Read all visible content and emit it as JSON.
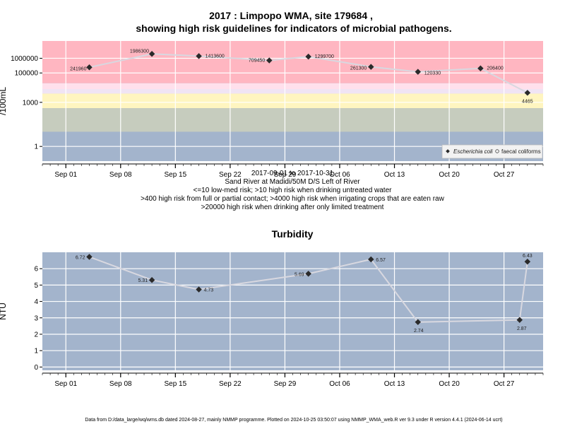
{
  "top_title": [
    "2017 : Limpopo WMA, site 179684 ,",
    "showing high risk guidelines for indicators of microbial pathogens."
  ],
  "top_subtitle": [
    "2017-09-01 to 2017-10-31",
    "Sand River at Madidi/50M D/S Left of River",
    "<=10 low-med risk; >10 high risk when drinking untreated water",
    ">400 high risk from full or partial contact; >4000 high risk when irrigating crops that are eaten raw",
    ">20000 high risk when drinking after only limited treatment"
  ],
  "bottom_title": "Turbidity",
  "footer": "Data from D:/data_large/wq/wms.db dated 2024-08-27, mainly NMMP programme. Plotted on 2024-10-25 03:50:07 using NMMP_WMA_web.R ver 9.3 under R version 4.4.1 (2024-06-14 ucrt)",
  "legend": {
    "series1": "Escherichia coli",
    "series2": "faecal coliforms"
  },
  "colors": {
    "panel": "#a3b4cc",
    "grid": "#ffffff",
    "band_red": "#ffb6c1",
    "band_pink": "#ffe0ec",
    "band_lavender": "#f0e4f4",
    "band_yellow": "#fff5c0",
    "band_green": "#c6ccbe",
    "line": "#d8d8e0",
    "point": "#2a2a2a"
  },
  "chart_data": [
    {
      "type": "line",
      "title": "2017 : Limpopo WMA, site 179684 , showing high risk guidelines for indicators of microbial pathogens.",
      "ylabel": "/100mL",
      "y_scale": "log",
      "y_ticks": [
        1,
        1000,
        100000,
        1000000
      ],
      "x_ticks": [
        "Sep 01",
        "Sep 08",
        "Sep 15",
        "Sep 22",
        "Sep 29",
        "Oct 06",
        "Oct 13",
        "Oct 20",
        "Oct 27"
      ],
      "xlim": [
        "2017-08-29",
        "2017-11-01"
      ],
      "ylim": [
        0.1,
        15000000
      ],
      "guideline_bands": [
        {
          "from": 20000,
          "to": 15000000,
          "color": "#ffb6c1"
        },
        {
          "from": 4000,
          "to": 20000,
          "color": "#ffe0ec"
        },
        {
          "from": 400,
          "to": 4000,
          "color": "#fff5c0"
        },
        {
          "from": 10,
          "to": 400,
          "color": "#c6ccbe"
        }
      ],
      "legend_position": "bottom-right",
      "series": [
        {
          "name": "Escherichia coli",
          "x": [
            "2017-09-04",
            "2017-09-12",
            "2017-09-18",
            "2017-09-27",
            "2017-10-02",
            "2017-10-10",
            "2017-10-16",
            "2017-10-24",
            "2017-10-30"
          ],
          "values": [
            241960,
            1986300,
            1413600,
            709450,
            1299700,
            261300,
            120330,
            206400,
            4465
          ],
          "labels": [
            "241960",
            "1986300",
            "1413600",
            "709450",
            "1299700",
            "261300",
            "120330",
            "206400",
            "4465"
          ]
        }
      ]
    },
    {
      "type": "line",
      "title": "Turbidity",
      "ylabel": "NTU",
      "y_ticks": [
        0,
        1,
        2,
        3,
        4,
        5,
        6
      ],
      "ylim": [
        -0.2,
        7
      ],
      "xlim": [
        "2017-08-29",
        "2017-11-01"
      ],
      "x_ticks": [
        "Sep 01",
        "Sep 08",
        "Sep 15",
        "Sep 22",
        "Sep 29",
        "Oct 06",
        "Oct 13",
        "Oct 20",
        "Oct 27"
      ],
      "series": [
        {
          "x": [
            "2017-09-04",
            "2017-09-12",
            "2017-09-18",
            "2017-10-02",
            "2017-10-10",
            "2017-10-16",
            "2017-10-29",
            "2017-10-30"
          ],
          "values": [
            6.72,
            5.31,
            4.73,
            5.69,
            6.57,
            2.74,
            2.87,
            6.43
          ],
          "labels": [
            "6.72",
            "5.31",
            "4.73",
            "5.69",
            "6.57",
            "2.74",
            "2.87",
            "6.43"
          ]
        }
      ]
    }
  ]
}
